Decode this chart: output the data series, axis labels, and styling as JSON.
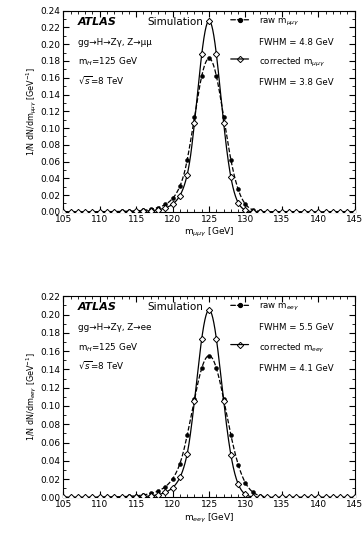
{
  "panel1": {
    "ylabel": "1/N dN/dm$_{\\mu\\mu\\gamma}$ [GeV$^{-1}$]",
    "xlabel": "m$_{\\mu\\mu\\gamma}$ [GeV]",
    "info1": "gg→H→Zγ, Z→μμ",
    "info2": "m$_H$=125 GeV",
    "info3": "$\\sqrt{s}$=8 TeV",
    "legend1": "raw m$_{\\mu\\mu\\gamma}$",
    "fwhm1": "FWHM = 4.8 GeV",
    "legend2": "corrected m$_{\\mu\\mu\\gamma}$",
    "fwhm2": "FWHM = 3.8 GeV",
    "peak_raw": 125.0,
    "sigma_raw": 2.04,
    "amp_raw": 0.183,
    "alpha_raw": 1.5,
    "n_raw": 8,
    "peak_corr": 125.0,
    "sigma_corr": 1.62,
    "amp_corr": 0.228,
    "alpha_corr": 1.5,
    "n_corr": 8,
    "ylim": [
      0,
      0.24
    ],
    "yticks": [
      0,
      0.02,
      0.04,
      0.06,
      0.08,
      0.1,
      0.12,
      0.14,
      0.16,
      0.18,
      0.2,
      0.22,
      0.24
    ]
  },
  "panel2": {
    "ylabel": "1/N dN/dm$_{ee\\gamma}$ [GeV$^{-1}$]",
    "xlabel": "m$_{ee\\gamma}$ [GeV]",
    "info1": "gg→H→Zγ, Z→ee",
    "info2": "m$_H$=125 GeV",
    "info3": "$\\sqrt{s}$=8 TeV",
    "legend1": "raw m$_{ee\\gamma}$",
    "fwhm1": "FWHM = 5.5 GeV",
    "legend2": "corrected m$_{ee\\gamma}$",
    "fwhm2": "FWHM = 4.1 GeV",
    "peak_raw": 125.0,
    "sigma_raw": 2.34,
    "amp_raw": 0.155,
    "alpha_raw": 1.5,
    "n_raw": 8,
    "peak_corr": 125.0,
    "sigma_corr": 1.74,
    "amp_corr": 0.205,
    "alpha_corr": 1.5,
    "n_corr": 8,
    "ylim": [
      0,
      0.22
    ],
    "yticks": [
      0,
      0.02,
      0.04,
      0.06,
      0.08,
      0.1,
      0.12,
      0.14,
      0.16,
      0.18,
      0.2,
      0.22
    ]
  },
  "xlim": [
    105,
    145
  ],
  "xticks": [
    105,
    110,
    115,
    120,
    125,
    130,
    135,
    140,
    145
  ]
}
